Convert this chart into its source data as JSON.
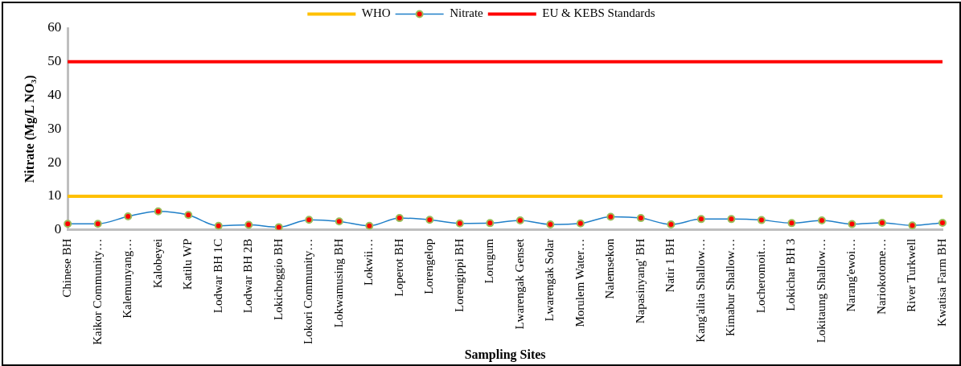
{
  "chart_data": {
    "type": "line",
    "xlabel": "Sampling Sites",
    "ylabel": "Nitrate (Mg/L NO₃)",
    "categories": [
      "Chinese BH",
      "Kaikor Community…",
      "Kalemunyang…",
      "Kalobeyei",
      "Katilu WP",
      "Lodwar BH 1C",
      "Lodwar BH 2B",
      "Lokichoggio BH",
      "Lokori Community…",
      "Lokwamusing BH",
      "Lokwii…",
      "Loperot BH",
      "Lorengelop",
      "Lorengippi BH",
      "Lorugum",
      "Lwarengak Genset",
      "Lwarengak Solar",
      "Morulem Water…",
      "Nalemsekon",
      "Napasinyang' BH",
      "Natir 1 BH",
      "Kang'alita Shallow…",
      "Kimabur Shallow…",
      "Locheromoit…",
      "Lokichar BH 3",
      "Lokitaung Shallow…",
      "Narang'ewoi…",
      "Nariokotome…",
      "River Turkwell",
      "Kwatisa Farm BH"
    ],
    "series": [
      {
        "name": "WHO",
        "color": "#ffc000",
        "marker": "none",
        "values": [
          10,
          10,
          10,
          10,
          10,
          10,
          10,
          10,
          10,
          10,
          10,
          10,
          10,
          10,
          10,
          10,
          10,
          10,
          10,
          10,
          10,
          10,
          10,
          10,
          10,
          10,
          10,
          10,
          10,
          10
        ]
      },
      {
        "name": "Nitrate",
        "color": "#1f7fc8",
        "marker": "circle",
        "values": [
          1.8,
          1.8,
          4.0,
          5.5,
          4.4,
          1.2,
          1.5,
          0.8,
          3.0,
          2.5,
          1.2,
          3.5,
          3.0,
          1.9,
          2.0,
          2.8,
          1.6,
          1.9,
          3.9,
          3.5,
          1.6,
          3.2,
          3.2,
          2.9,
          2.0,
          2.8,
          1.7,
          2.1,
          1.3,
          2.1
        ]
      },
      {
        "name": "EU & KEBS Standards",
        "color": "#ff0000",
        "marker": "none",
        "values": [
          50,
          50,
          50,
          50,
          50,
          50,
          50,
          50,
          50,
          50,
          50,
          50,
          50,
          50,
          50,
          50,
          50,
          50,
          50,
          50,
          50,
          50,
          50,
          50,
          50,
          50,
          50,
          50,
          50,
          50
        ]
      }
    ],
    "ylim": [
      0,
      60
    ],
    "yticks": [
      0,
      10,
      20,
      30,
      40,
      50,
      60
    ],
    "grid": false,
    "legend": "top",
    "line_style": "solid"
  }
}
